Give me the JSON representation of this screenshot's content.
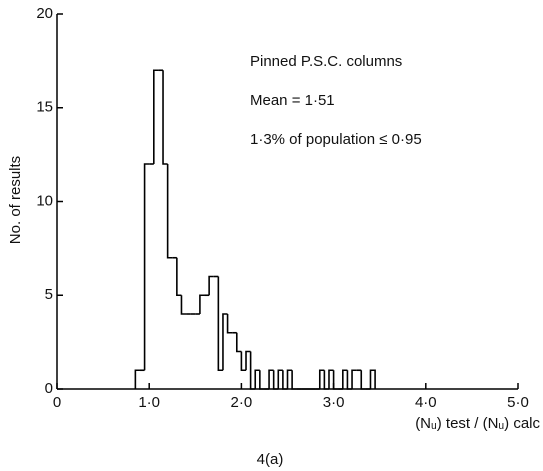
{
  "chart_data": {
    "type": "histogram",
    "title": "4(a)",
    "xlabel": "(Nᵤ) test / (Nᵤ) calc",
    "ylabel": "No. of results",
    "annotations": [
      "Pinned P.S.C. columns",
      "Mean = 1·51",
      "1·3% of population ≤ 0·95"
    ],
    "bins": [
      0.85,
      0.9,
      0.95,
      1.0,
      1.05,
      1.1,
      1.15,
      1.2,
      1.25,
      1.3,
      1.35,
      1.4,
      1.45,
      1.5,
      1.55,
      1.6,
      1.65,
      1.7,
      1.75,
      1.8,
      1.85,
      1.9,
      1.95,
      2.0,
      2.05,
      2.1,
      2.15,
      2.2,
      2.25,
      2.3,
      2.35,
      2.4,
      2.45,
      2.5,
      2.55,
      2.6,
      2.65,
      2.7,
      2.75,
      2.8,
      2.85,
      2.9,
      2.95,
      3.0,
      3.05,
      3.1,
      3.15,
      3.2,
      3.25,
      3.3,
      3.35,
      3.4,
      3.45
    ],
    "values": [
      1,
      1,
      12,
      12,
      17,
      17,
      12,
      7,
      7,
      5,
      4,
      4,
      4,
      4,
      5,
      5,
      6,
      6,
      1,
      4,
      3,
      3,
      2,
      1,
      2,
      0,
      1,
      0,
      0,
      1,
      0,
      1,
      0,
      1,
      0,
      0,
      0,
      0,
      0,
      0,
      1,
      0,
      1,
      0,
      0,
      1,
      0,
      1,
      1,
      0,
      0,
      1
    ],
    "color": "#000000",
    "xlim": [
      0,
      5
    ],
    "ylim": [
      0,
      20
    ],
    "xticks": [
      0,
      {
        "value": 1,
        "label": "1·0"
      },
      {
        "value": 2,
        "label": "2·0"
      },
      {
        "value": 3,
        "label": "3·0"
      },
      {
        "value": 4,
        "label": "4·0"
      },
      {
        "value": 5,
        "label": "5·0"
      }
    ],
    "yticks": [
      0,
      5,
      10,
      15,
      20
    ],
    "grid": false
  }
}
